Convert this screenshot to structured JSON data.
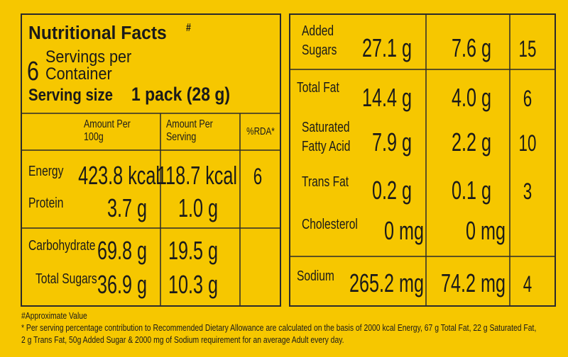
{
  "header": {
    "title": "Nutritional Facts",
    "title_mark": "#",
    "servings_number": "6",
    "servings_text": [
      "Servings per",
      "Container"
    ],
    "serving_size_label": "Serving size",
    "serving_size_value": "1 pack (28 g)"
  },
  "columns": {
    "per_100g": [
      "Amount Per",
      "100g"
    ],
    "per_serving": [
      "Amount Per",
      "Serving"
    ],
    "rda": "%RDA*"
  },
  "left_rows": [
    {
      "name": [
        "Energy"
      ],
      "per_100g": "423.8 kcal",
      "per_serving": "118.7 kcal",
      "rda": "6"
    },
    {
      "name": [
        "Protein"
      ],
      "per_100g": "3.7 g",
      "per_serving": "1.0 g"
    },
    {
      "name": [
        "Carbohydrate"
      ],
      "per_100g": "69.8 g",
      "per_serving": "19.5 g"
    },
    {
      "name": [
        "Total Sugars"
      ],
      "per_100g": "36.9 g",
      "per_serving": "10.3 g"
    }
  ],
  "right_rows": [
    {
      "name": [
        "Added",
        "Sugars"
      ],
      "per_100g": "27.1 g",
      "per_serving": "7.6 g",
      "rda": "15"
    },
    {
      "name": [
        "Total Fat"
      ],
      "per_100g": "14.4 g",
      "per_serving": "4.0 g",
      "rda": "6"
    },
    {
      "name": [
        "Saturated",
        "Fatty Acid"
      ],
      "per_100g": "7.9 g",
      "per_serving": "2.2 g",
      "rda": "10"
    },
    {
      "name": [
        "Trans Fat"
      ],
      "per_100g": "0.2 g",
      "per_serving": "0.1 g",
      "rda": "3"
    },
    {
      "name": [
        "Cholesterol"
      ],
      "per_100g": "0 mg",
      "per_serving": "0 mg"
    },
    {
      "name": [
        "Sodium"
      ],
      "per_100g": "265.2 mg",
      "per_serving": "74.2 mg",
      "rda": "4"
    }
  ],
  "footnotes": [
    "#Approximate Value",
    "* Per serving percentage contribution to Recommended Dietary Allowance are calculated on the basis of 2000 kcal Energy, 67 g Total Fat, 22 g Saturated Fat,",
    "2 g Trans Fat, 50g Added Sugar & 2000 mg of Sodium requirement for an average  Adult  every day."
  ]
}
